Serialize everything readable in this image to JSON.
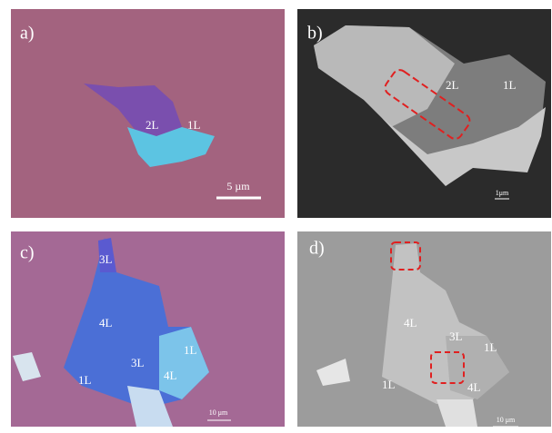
{
  "panels": [
    {
      "label": "a)",
      "layers": [
        "2L",
        "1L"
      ],
      "scale_bar": "5 µm"
    },
    {
      "label": "b)",
      "layers": [
        "2L",
        "1L"
      ],
      "scale_bar": "1μm"
    },
    {
      "label": "c)",
      "layers": [
        "3L",
        "4L",
        "3L",
        "1L",
        "1L",
        "4L"
      ],
      "scale_bar": "10 μm"
    },
    {
      "label": "d)",
      "layers": [
        "4L",
        "3L",
        "1L",
        "1L",
        "4L"
      ],
      "scale_bar": "10 μm"
    }
  ]
}
